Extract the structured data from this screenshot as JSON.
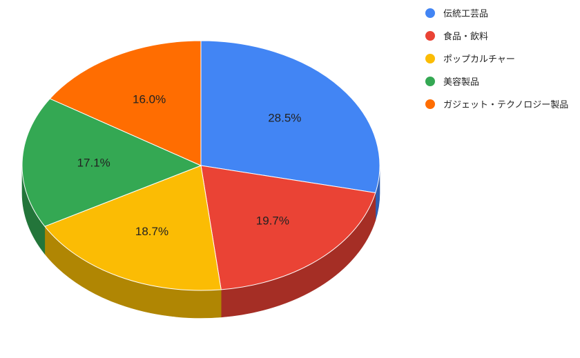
{
  "chart_data": {
    "type": "pie",
    "title": "",
    "legend_position": "top-right",
    "slices": [
      {
        "label": "伝統工芸品",
        "percent": 28.5,
        "display": "28.5%",
        "color": "#4285f4",
        "side_color": "#2f5fb3"
      },
      {
        "label": "食品・飲料",
        "percent": 19.7,
        "display": "19.7%",
        "color": "#ea4335",
        "side_color": "#a52e25"
      },
      {
        "label": "ポップカルチャー",
        "percent": 18.7,
        "display": "18.7%",
        "color": "#fbbc04",
        "side_color": "#b08603"
      },
      {
        "label": "美容製品",
        "percent": 17.1,
        "display": "17.1%",
        "color": "#34a853",
        "side_color": "#23753a"
      },
      {
        "label": "ガジェット・テクノロジー製品",
        "percent": 16.0,
        "display": "16.0%",
        "color": "#ff6d01",
        "side_color": "#b34c01"
      }
    ]
  }
}
